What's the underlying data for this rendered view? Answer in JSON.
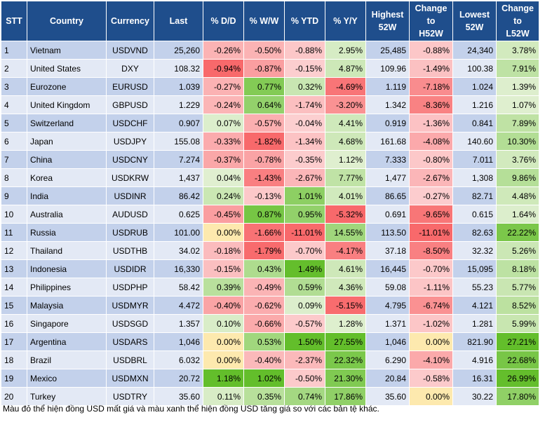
{
  "chart_data": {
    "type": "table",
    "columns": [
      "STT",
      "Country",
      "Currency",
      "Last",
      "% D/D",
      "% W/W",
      "% YTD",
      "% Y/Y",
      "Highest 52W",
      "Change to H52W",
      "Lowest 52W",
      "Change to L52W"
    ],
    "header_lines": [
      [
        "STT"
      ],
      [
        "Country"
      ],
      [
        "Currency"
      ],
      [
        "Last"
      ],
      [
        "% D/D"
      ],
      [
        "% W/W"
      ],
      [
        "% YTD"
      ],
      [
        "% Y/Y"
      ],
      [
        "Highest",
        "52W"
      ],
      [
        "Change",
        "to",
        "H52W"
      ],
      [
        "Lowest",
        "52W"
      ],
      [
        "Change",
        "to",
        "L52W"
      ]
    ],
    "rows": [
      [
        "1",
        "Vietnam",
        "USDVND",
        "25,260",
        "-0.26%",
        "-0.50%",
        "-0.88%",
        "2.95%",
        "25,485",
        "-0.88%",
        "24,340",
        "3.78%"
      ],
      [
        "2",
        "United States",
        "DXY",
        "108.32",
        "-0.94%",
        "-0.87%",
        "-0.15%",
        "4.87%",
        "109.96",
        "-1.49%",
        "100.38",
        "7.91%"
      ],
      [
        "3",
        "Eurozone",
        "EURUSD",
        "1.039",
        "-0.27%",
        "0.77%",
        "0.32%",
        "-4.69%",
        "1.119",
        "-7.18%",
        "1.024",
        "1.39%"
      ],
      [
        "4",
        "United Kingdom",
        "GBPUSD",
        "1.229",
        "-0.24%",
        "0.64%",
        "-1.74%",
        "-3.20%",
        "1.342",
        "-8.36%",
        "1.216",
        "1.07%"
      ],
      [
        "5",
        "Switzerland",
        "USDCHF",
        "0.907",
        "0.07%",
        "-0.57%",
        "-0.04%",
        "4.41%",
        "0.919",
        "-1.36%",
        "0.841",
        "7.89%"
      ],
      [
        "6",
        "Japan",
        "USDJPY",
        "155.08",
        "-0.33%",
        "-1.82%",
        "-1.34%",
        "4.68%",
        "161.68",
        "-4.08%",
        "140.60",
        "10.30%"
      ],
      [
        "7",
        "China",
        "USDCNY",
        "7.274",
        "-0.37%",
        "-0.78%",
        "-0.35%",
        "1.12%",
        "7.333",
        "-0.80%",
        "7.011",
        "3.76%"
      ],
      [
        "8",
        "Korea",
        "USDKRW",
        "1,437",
        "0.04%",
        "-1.43%",
        "-2.67%",
        "7.77%",
        "1,477",
        "-2.67%",
        "1,308",
        "9.86%"
      ],
      [
        "9",
        "India",
        "USDINR",
        "86.42",
        "0.24%",
        "-0.13%",
        "1.01%",
        "4.01%",
        "86.65",
        "-0.27%",
        "82.71",
        "4.48%"
      ],
      [
        "10",
        "Australia",
        "AUDUSD",
        "0.625",
        "-0.45%",
        "0.87%",
        "0.95%",
        "-5.32%",
        "0.691",
        "-9.65%",
        "0.615",
        "1.64%"
      ],
      [
        "11",
        "Russia",
        "USDRUB",
        "101.00",
        "0.00%",
        "-1.66%",
        "-11.01%",
        "14.55%",
        "113.50",
        "-11.01%",
        "82.63",
        "22.22%"
      ],
      [
        "12",
        "Thailand",
        "USDTHB",
        "34.02",
        "-0.18%",
        "-1.79%",
        "-0.70%",
        "-4.17%",
        "37.18",
        "-8.50%",
        "32.32",
        "5.26%"
      ],
      [
        "13",
        "Indonesia",
        "USDIDR",
        "16,330",
        "-0.15%",
        "0.43%",
        "1.49%",
        "4.61%",
        "16,445",
        "-0.70%",
        "15,095",
        "8.18%"
      ],
      [
        "14",
        "Philippines",
        "USDPHP",
        "58.42",
        "0.39%",
        "-0.49%",
        "0.59%",
        "4.36%",
        "59.08",
        "-1.11%",
        "55.23",
        "5.77%"
      ],
      [
        "15",
        "Malaysia",
        "USDMYR",
        "4.472",
        "-0.40%",
        "-0.62%",
        "0.09%",
        "-5.15%",
        "4.795",
        "-6.74%",
        "4.121",
        "8.52%"
      ],
      [
        "16",
        "Singapore",
        "USDSGD",
        "1.357",
        "0.10%",
        "-0.66%",
        "-0.57%",
        "1.28%",
        "1.371",
        "-1.02%",
        "1.281",
        "5.99%"
      ],
      [
        "17",
        "Argentina",
        "USDARS",
        "1,046",
        "0.00%",
        "0.53%",
        "1.50%",
        "27.55%",
        "1,046",
        "0.00%",
        "821.90",
        "27.21%"
      ],
      [
        "18",
        "Brazil",
        "USDBRL",
        "6.032",
        "0.00%",
        "-0.40%",
        "-2.37%",
        "22.32%",
        "6.290",
        "-4.10%",
        "4.916",
        "22.68%"
      ],
      [
        "19",
        "Mexico",
        "USDMXN",
        "20.72",
        "1.18%",
        "1.02%",
        "-0.50%",
        "21.30%",
        "20.84",
        "-0.58%",
        "16.31",
        "26.99%"
      ],
      [
        "20",
        "Turkey",
        "USDTRY",
        "35.60",
        "0.11%",
        "0.35%",
        "0.74%",
        "17.86%",
        "35.60",
        "0.00%",
        "30.22",
        "17.80%"
      ]
    ],
    "heatmap_columns": [
      4,
      5,
      6,
      7,
      9,
      11
    ],
    "scale": {
      "neg": [
        "#f8696b",
        "#fccfd0"
      ],
      "zero": "#fde9ae",
      "pos": [
        "#e4f1d6",
        "#63be2b"
      ]
    },
    "footnote": "Màu đỏ thể hiện đồng USD mất giá và màu xanh thể hiện đồng USD tăng giá so với các bản tệ khác."
  }
}
